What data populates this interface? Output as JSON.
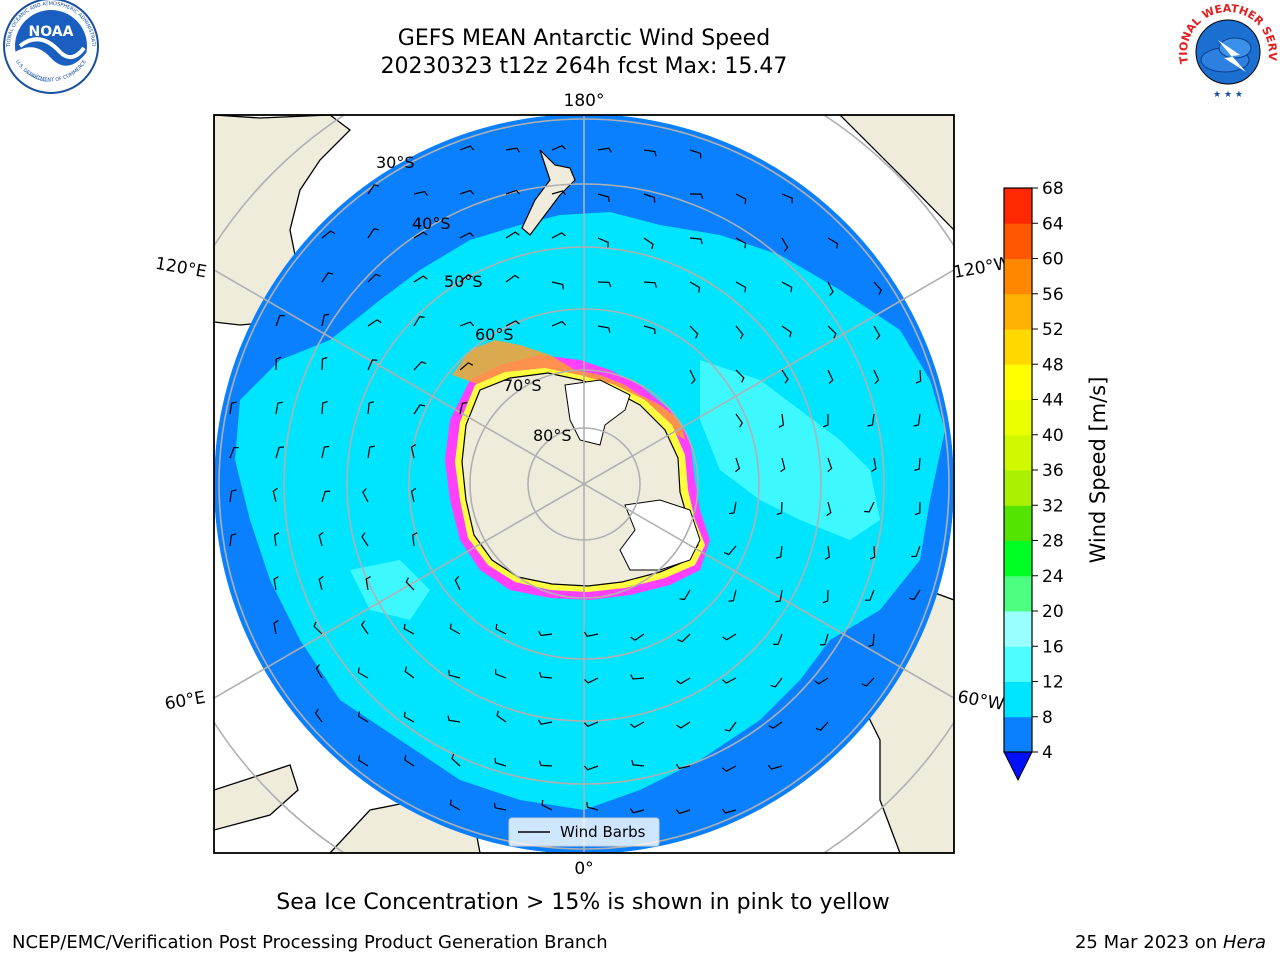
{
  "title": {
    "line1": "GEFS MEAN Antarctic Wind Speed",
    "line2": "20230323 t12z 264h fcst   Max: 15.47"
  },
  "map": {
    "lon_labels": {
      "top": "180°",
      "bottom": "0°",
      "upper_left": "120°E",
      "upper_right": "120°W",
      "lower_left": "60°E",
      "lower_right": "60°W"
    },
    "lat_labels": [
      "30°S",
      "40°S",
      "50°S",
      "60°S",
      "70°S",
      "80°S"
    ],
    "legend": {
      "label": "Wind Barbs"
    },
    "colors": {
      "land": "#efecdc",
      "ocean_4_8": "#0a80ff",
      "ocean_8_12": "#00e5ff",
      "ocean_12_16": "#4dfdff",
      "ice_pink": "#ff40ff",
      "ice_orange": "#ffa030",
      "ice_yellow": "#ffff40"
    }
  },
  "colorbar": {
    "label": "Wind Speed [m/s]",
    "ticks": [
      "4",
      "8",
      "12",
      "16",
      "20",
      "24",
      "28",
      "32",
      "36",
      "40",
      "44",
      "48",
      "52",
      "56",
      "60",
      "64",
      "68"
    ],
    "colors": [
      "#0a80ff",
      "#00e5ff",
      "#4dfdff",
      "#99ffff",
      "#4dff80",
      "#00ff22",
      "#55e400",
      "#aaf000",
      "#d2f800",
      "#eaff00",
      "#ffff00",
      "#ffd800",
      "#ffb000",
      "#ff8800",
      "#ff5800",
      "#ff2800",
      "#ff0000"
    ],
    "extend_color": "#0010ff"
  },
  "caption": "Sea Ice Concentration > 15% is shown in pink to yellow",
  "footer": {
    "credit": "NCEP/EMC/Verification Post Processing Product Generation Branch",
    "date": "25 Mar 2023 on ",
    "machine": "Hera"
  },
  "logos": {
    "noaa": "NOAA",
    "noaa_ring_top": "NATIONAL OCEANIC AND ATMOSPHERIC ADMINISTRATION",
    "noaa_ring_bottom": "U.S. DEPARTMENT OF COMMERCE",
    "nws_ring": "NATIONAL WEATHER SERVICE"
  }
}
